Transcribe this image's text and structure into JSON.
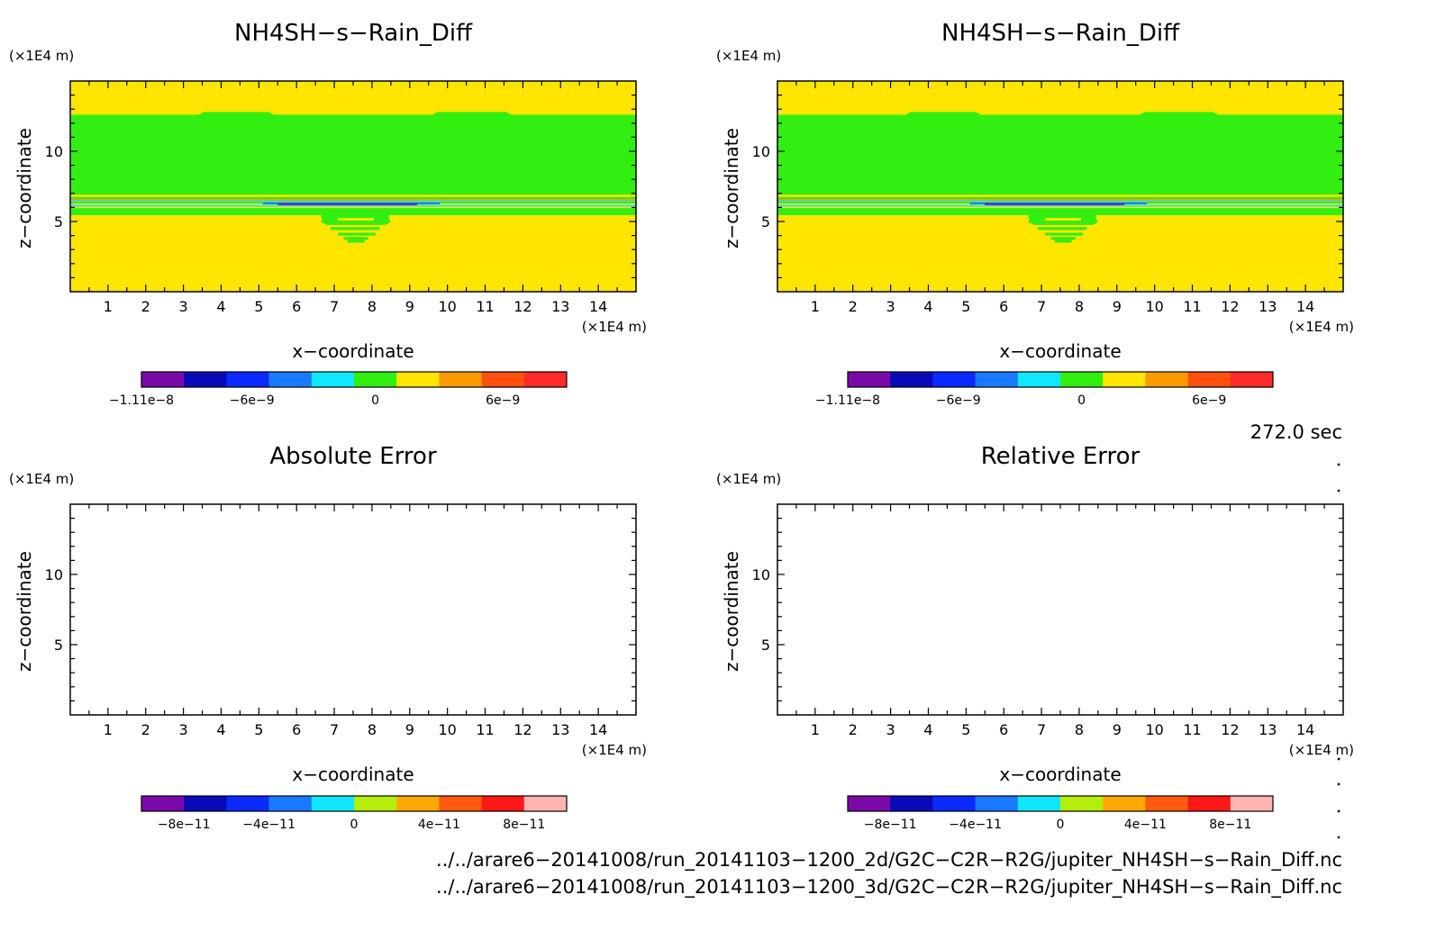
{
  "time_label": "272.0 sec",
  "colors": {
    "yellow": "#ffe600",
    "green": "#33ee11",
    "frame": "#000000"
  },
  "palettes": {
    "diff": [
      "#7a0aa8",
      "#0a0ab8",
      "#0a2aff",
      "#1a7aff",
      "#10e8ff",
      "#33ee11",
      "#ffe600",
      "#ff9a00",
      "#ff5010",
      "#ff2a2a"
    ],
    "error": [
      "#7a0aa8",
      "#0a0ab8",
      "#0a2aff",
      "#1a7aff",
      "#10e8ff",
      "#b4ee0a",
      "#ffa800",
      "#ff5a10",
      "#ff1818",
      "#ffb4b4"
    ]
  },
  "chart_data": [
    {
      "type": "heatmap",
      "title": "NH4SH−s−Rain_Diff",
      "xlabel": "x−coordinate",
      "ylabel": "z−coordinate",
      "x_unit": "(×1E4 m)",
      "y_unit": "(×1E4 m)",
      "xlim": [
        0,
        15
      ],
      "ylim": [
        0,
        15
      ],
      "xticks": [
        1,
        2,
        3,
        4,
        5,
        6,
        7,
        8,
        9,
        10,
        11,
        12,
        13,
        14
      ],
      "yticks": [
        5,
        10
      ],
      "filled": true,
      "colorbar": {
        "palette": "diff",
        "ticks": [
          "−1.11e−8",
          "−6e−9",
          "0",
          "6e−9"
        ]
      }
    },
    {
      "type": "heatmap",
      "title": "NH4SH−s−Rain_Diff",
      "xlabel": "x−coordinate",
      "ylabel": "z−coordinate",
      "x_unit": "(×1E4 m)",
      "y_unit": "(×1E4 m)",
      "xlim": [
        0,
        15
      ],
      "ylim": [
        0,
        15
      ],
      "xticks": [
        1,
        2,
        3,
        4,
        5,
        6,
        7,
        8,
        9,
        10,
        11,
        12,
        13,
        14
      ],
      "yticks": [
        5,
        10
      ],
      "filled": true,
      "colorbar": {
        "palette": "diff",
        "ticks": [
          "−1.11e−8",
          "−6e−9",
          "0",
          "6e−9"
        ]
      }
    },
    {
      "type": "heatmap",
      "title": "Absolute Error",
      "xlabel": "x−coordinate",
      "ylabel": "z−coordinate",
      "x_unit": "(×1E4 m)",
      "y_unit": "(×1E4 m)",
      "xlim": [
        0,
        15
      ],
      "ylim": [
        0,
        15
      ],
      "xticks": [
        1,
        2,
        3,
        4,
        5,
        6,
        7,
        8,
        9,
        10,
        11,
        12,
        13,
        14
      ],
      "yticks": [
        5,
        10
      ],
      "filled": false,
      "colorbar": {
        "palette": "error",
        "ticks": [
          "−8e−11",
          "−4e−11",
          "0",
          "4e−11",
          "8e−11"
        ]
      }
    },
    {
      "type": "heatmap",
      "title": "Relative Error",
      "xlabel": "x−coordinate",
      "ylabel": "z−coordinate",
      "x_unit": "(×1E4 m)",
      "y_unit": "(×1E4 m)",
      "xlim": [
        0,
        15
      ],
      "ylim": [
        0,
        15
      ],
      "xticks": [
        1,
        2,
        3,
        4,
        5,
        6,
        7,
        8,
        9,
        10,
        11,
        12,
        13,
        14
      ],
      "yticks": [
        5,
        10
      ],
      "filled": false,
      "colorbar": {
        "palette": "error",
        "ticks": [
          "−8e−11",
          "−4e−11",
          "0",
          "4e−11",
          "8e−11"
        ]
      }
    }
  ],
  "footer": {
    "file1": "../../arare6−20141008/run_20141103−1200_2d/G2C−C2R−R2G/jupiter_NH4SH−s−Rain_Diff.nc",
    "file2": "../../arare6−20141008/run_20141103−1200_3d/G2C−C2R−R2G/jupiter_NH4SH−s−Rain_Diff.nc"
  }
}
